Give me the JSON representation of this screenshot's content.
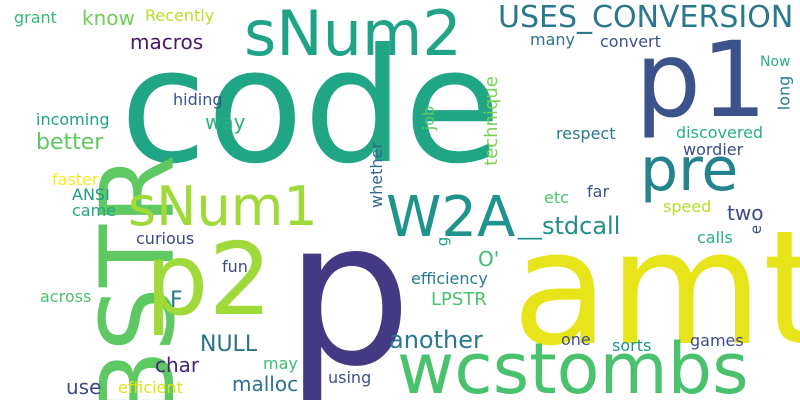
{
  "words": [
    {
      "text": "code",
      "color": "#21a685"
    },
    {
      "text": "amt",
      "color": "#e7e419"
    },
    {
      "text": "p",
      "color": "#443a83"
    },
    {
      "text": "BSTR",
      "color": "#5ec962"
    },
    {
      "text": "p1",
      "color": "#3b528b"
    },
    {
      "text": "wcstombs",
      "color": "#4ac16d"
    },
    {
      "text": "p2",
      "color": "#9fda3a"
    },
    {
      "text": "sNum2",
      "color": "#20a386"
    },
    {
      "text": "pre",
      "color": "#25838e"
    },
    {
      "text": "W2A",
      "color": "#1f948c"
    },
    {
      "text": "sNum1",
      "color": "#a0da39"
    },
    {
      "text": "USES_CONVERSION",
      "color": "#2a788e"
    },
    {
      "text": "technique",
      "color": "#7ad151"
    },
    {
      "text": "macros",
      "color": "#481668"
    },
    {
      "text": "Recently",
      "color": "#b8de29"
    },
    {
      "text": "know",
      "color": "#6ece58"
    },
    {
      "text": "grant",
      "color": "#35b779"
    },
    {
      "text": "many",
      "color": "#2d708e"
    },
    {
      "text": "convert",
      "color": "#3b528b"
    },
    {
      "text": "Now",
      "color": "#2ab07f"
    },
    {
      "text": "long",
      "color": "#287c8e"
    },
    {
      "text": "way",
      "color": "#2ab07f"
    },
    {
      "text": "hiding",
      "color": "#3b528b"
    },
    {
      "text": "incoming",
      "color": "#20a386"
    },
    {
      "text": "better",
      "color": "#5ec962"
    },
    {
      "text": "job",
      "color": "#5ec962"
    },
    {
      "text": "respect",
      "color": "#2a788e"
    },
    {
      "text": "discovered",
      "color": "#2ab07f"
    },
    {
      "text": "wordier",
      "color": "#3e4a89"
    },
    {
      "text": "faster",
      "color": "#fde725"
    },
    {
      "text": "ANSI",
      "color": "#1f998a"
    },
    {
      "text": "came",
      "color": "#22a785"
    },
    {
      "text": "whether",
      "color": "#31688e"
    },
    {
      "text": "etc",
      "color": "#4ac16d"
    },
    {
      "text": "far",
      "color": "#3b528b"
    },
    {
      "text": "two",
      "color": "#3e4989"
    },
    {
      "text": "speed",
      "color": "#b5de2b"
    },
    {
      "text": "__stdcall",
      "color": "#228d8d"
    },
    {
      "text": "curious",
      "color": "#3f4788"
    },
    {
      "text": "g",
      "color": "#1f9e89"
    },
    {
      "text": "e",
      "color": "#3b528b"
    },
    {
      "text": "calls",
      "color": "#2ab07f"
    },
    {
      "text": "O'",
      "color": "#3fbc73"
    },
    {
      "text": "fun",
      "color": "#3e4a89"
    },
    {
      "text": "efficiency",
      "color": "#287c8e"
    },
    {
      "text": "F",
      "color": "#2a788e"
    },
    {
      "text": "across",
      "color": "#4ac16d"
    },
    {
      "text": "LPSTR",
      "color": "#4ac16d"
    },
    {
      "text": "NULL",
      "color": "#2c728e"
    },
    {
      "text": "another",
      "color": "#2a788e"
    },
    {
      "text": "one",
      "color": "#3b528b"
    },
    {
      "text": "sorts",
      "color": "#1f948c"
    },
    {
      "text": "games",
      "color": "#3e4a89"
    },
    {
      "text": "char",
      "color": "#482878"
    },
    {
      "text": "may",
      "color": "#3fbc73"
    },
    {
      "text": "malloc",
      "color": "#2c728e"
    },
    {
      "text": "using",
      "color": "#3b528b"
    },
    {
      "text": "use",
      "color": "#3e4a89"
    },
    {
      "text": "efficient",
      "color": "#dde318"
    }
  ]
}
